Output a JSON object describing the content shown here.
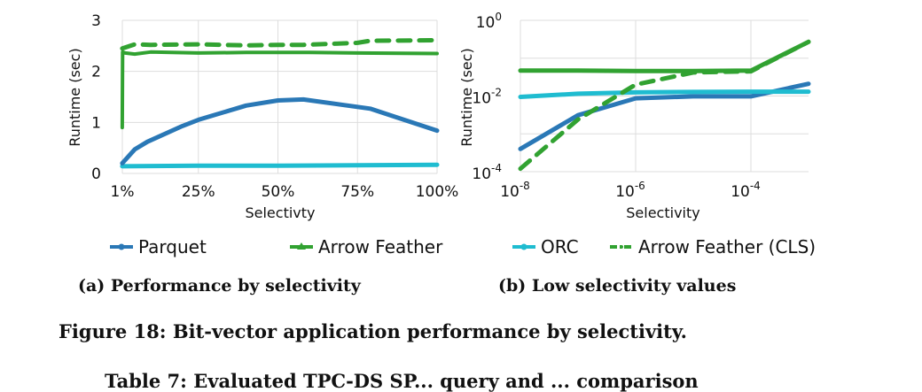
{
  "colors": {
    "parquet": "#2a78b6",
    "arrow_feather": "#31a231",
    "orc": "#1fbcd0",
    "arrow_feather_cls": "#31a231",
    "grid": "#dddddd"
  },
  "legend": [
    {
      "name": "Parquet",
      "color_key": "parquet",
      "style": "solid",
      "marker": "circle"
    },
    {
      "name": "Arrow Feather",
      "color_key": "arrow_feather",
      "style": "solid",
      "marker": "triangle"
    },
    {
      "name": "ORC",
      "color_key": "orc",
      "style": "solid",
      "marker": "circle"
    },
    {
      "name": "Arrow Feather (CLS)",
      "color_key": "arrow_feather_cls",
      "style": "dashdot",
      "marker": "dot"
    }
  ],
  "chart_data": [
    {
      "type": "line",
      "title": "",
      "caption": "(a) Performance by selectivity",
      "xlabel": "Selectivty",
      "ylabel": "Runtime (sec)",
      "xlim": [
        0,
        100
      ],
      "ylim": [
        0,
        3
      ],
      "x_ticks": [
        1,
        25,
        50,
        75,
        100
      ],
      "x_tick_labels": [
        "1%",
        "25%",
        "50%",
        "75%",
        "100%"
      ],
      "y_ticks": [
        0,
        1,
        2,
        3
      ],
      "y_tick_labels": [
        "0",
        "1",
        "2",
        "3"
      ],
      "grid": true,
      "legend_position": "bottom",
      "series": [
        {
          "name": "Parquet",
          "x": [
            1,
            5,
            9,
            20,
            25,
            40,
            50,
            58,
            79,
            100
          ],
          "y": [
            0.2,
            0.47,
            0.62,
            0.93,
            1.05,
            1.33,
            1.43,
            1.45,
            1.27,
            0.84
          ]
        },
        {
          "name": "Arrow Feather",
          "x": [
            1,
            1.2,
            2,
            5,
            10,
            25,
            40,
            50,
            60,
            75,
            100
          ],
          "y": [
            0.9,
            2.38,
            2.36,
            2.34,
            2.38,
            2.36,
            2.37,
            2.37,
            2.37,
            2.36,
            2.35
          ]
        },
        {
          "name": "ORC",
          "x": [
            1,
            25,
            50,
            75,
            100
          ],
          "y": [
            0.14,
            0.15,
            0.15,
            0.16,
            0.17
          ]
        },
        {
          "name": "Arrow Feather (CLS)",
          "x": [
            1,
            5,
            10,
            25,
            40,
            50,
            58,
            75,
            79,
            100
          ],
          "y": [
            2.45,
            2.53,
            2.52,
            2.53,
            2.51,
            2.52,
            2.52,
            2.56,
            2.6,
            2.61
          ]
        }
      ]
    },
    {
      "type": "line",
      "title": "",
      "caption": "(b) Low selectivity values",
      "xlabel": "Selectivity",
      "ylabel": "Runtime (sec)",
      "xscale": "log",
      "yscale": "log",
      "xlim": [
        1e-08,
        0.001
      ],
      "ylim": [
        0.0001,
        1
      ],
      "x_ticks": [
        1e-08,
        1e-06,
        0.0001
      ],
      "x_tick_labels": [
        {
          "base": "10",
          "exp": "-8"
        },
        {
          "base": "10",
          "exp": "-6"
        },
        {
          "base": "10",
          "exp": "-4"
        }
      ],
      "y_ticks": [
        0.0001,
        0.01,
        1
      ],
      "y_tick_labels": [
        {
          "base": "10",
          "exp": "-4"
        },
        {
          "base": "10",
          "exp": "-2"
        },
        {
          "base": "10",
          "exp": "0"
        }
      ],
      "grid": true,
      "legend_position": "bottom",
      "series": [
        {
          "name": "Parquet",
          "x": [
            1e-08,
            1e-07,
            1e-06,
            1e-05,
            0.0001,
            0.001
          ],
          "y": [
            0.0004,
            0.0031,
            0.0087,
            0.0098,
            0.0098,
            0.021
          ]
        },
        {
          "name": "Arrow Feather",
          "x": [
            1e-08,
            1e-07,
            1e-06,
            1e-05,
            0.0001,
            0.001
          ],
          "y": [
            0.047,
            0.047,
            0.046,
            0.046,
            0.047,
            0.27
          ]
        },
        {
          "name": "ORC",
          "x": [
            1e-08,
            1e-07,
            1e-06,
            1e-05,
            0.0001,
            0.001
          ],
          "y": [
            0.0095,
            0.0115,
            0.0125,
            0.0128,
            0.013,
            0.013
          ]
        },
        {
          "name": "Arrow Feather (CLS)",
          "x": [
            1e-08,
            1e-07,
            1e-06,
            1e-05,
            0.0001,
            0.001
          ],
          "y": [
            0.00012,
            0.0024,
            0.02,
            0.042,
            0.045,
            0.27
          ]
        }
      ]
    }
  ],
  "figure_caption": "Figure 18: Bit-vector application performance by selectivity.",
  "next_caption": "Table 7: Evaluated TPC-DS SP... query and ... comparison"
}
